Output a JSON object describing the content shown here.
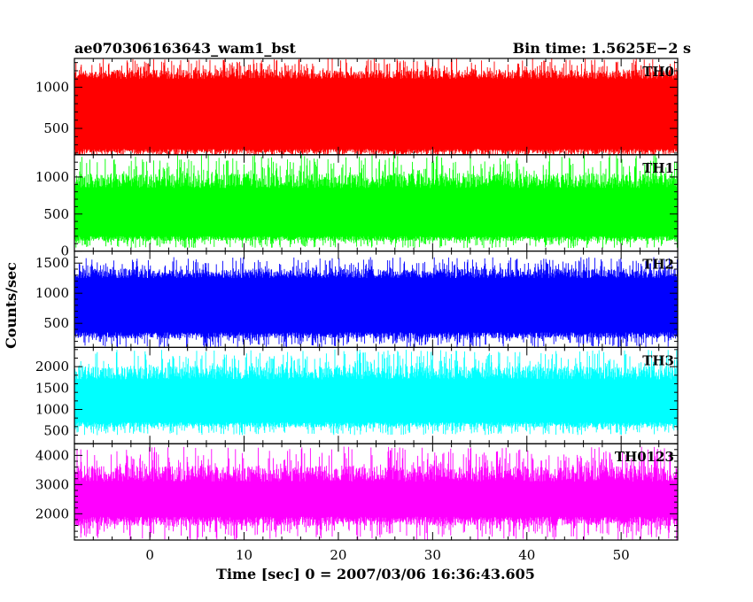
{
  "header": {
    "left": "ae070306163643_wam1_bst",
    "right": "Bin time: 1.5625E−2 s"
  },
  "chart_data": {
    "type": "line",
    "title": "ae070306163643_wam1_bst",
    "xlabel": "Time [sec] 0 = 2007/03/06 16:36:43.605",
    "ylabel": "Counts/sec",
    "xlim": [
      -8,
      56
    ],
    "x_ticks": [
      0,
      10,
      20,
      30,
      40,
      50
    ],
    "x_tick_labels": [
      "0",
      "10",
      "20",
      "30",
      "40",
      "50"
    ],
    "x_range": [
      -8,
      56
    ],
    "panels": [
      {
        "name": "TH0",
        "color": "#ff0000",
        "ylim": [
          180,
          1350
        ],
        "y_ticks": [
          500,
          1000
        ],
        "y_tick_labels": [
          "500",
          "1000"
        ],
        "base_range": [
          250,
          1100
        ],
        "peak": 1350,
        "trough": 120
      },
      {
        "name": "TH1",
        "color": "#00ff00",
        "ylim": [
          0,
          1300
        ],
        "y_ticks": [
          0,
          500,
          1000
        ],
        "y_tick_labels": [
          "0",
          "500",
          "1000"
        ],
        "base_range": [
          200,
          850
        ],
        "peak": 1300,
        "trough": 40
      },
      {
        "name": "TH2",
        "color": "#0000ff",
        "ylim": [
          100,
          1700
        ],
        "y_ticks": [
          500,
          1000,
          1500
        ],
        "y_tick_labels": [
          "500",
          "1000",
          "1500"
        ],
        "base_range": [
          350,
          1250
        ],
        "peak": 1600,
        "trough": 100
      },
      {
        "name": "TH3",
        "color": "#00ffff",
        "ylim": [
          200,
          2450
        ],
        "y_ticks": [
          500,
          1000,
          1500,
          2000
        ],
        "y_tick_labels": [
          "500",
          "1000",
          "1500",
          "2000"
        ],
        "base_range": [
          700,
          1700
        ],
        "peak": 2400,
        "trough": 400
      },
      {
        "name": "TH0123",
        "color": "#ff00ff",
        "ylim": [
          1100,
          4400
        ],
        "y_ticks": [
          2000,
          3000,
          4000
        ],
        "y_tick_labels": [
          "2000",
          "3000",
          "4000"
        ],
        "base_range": [
          1900,
          3100
        ],
        "peak": 4300,
        "trough": 1100
      }
    ]
  }
}
